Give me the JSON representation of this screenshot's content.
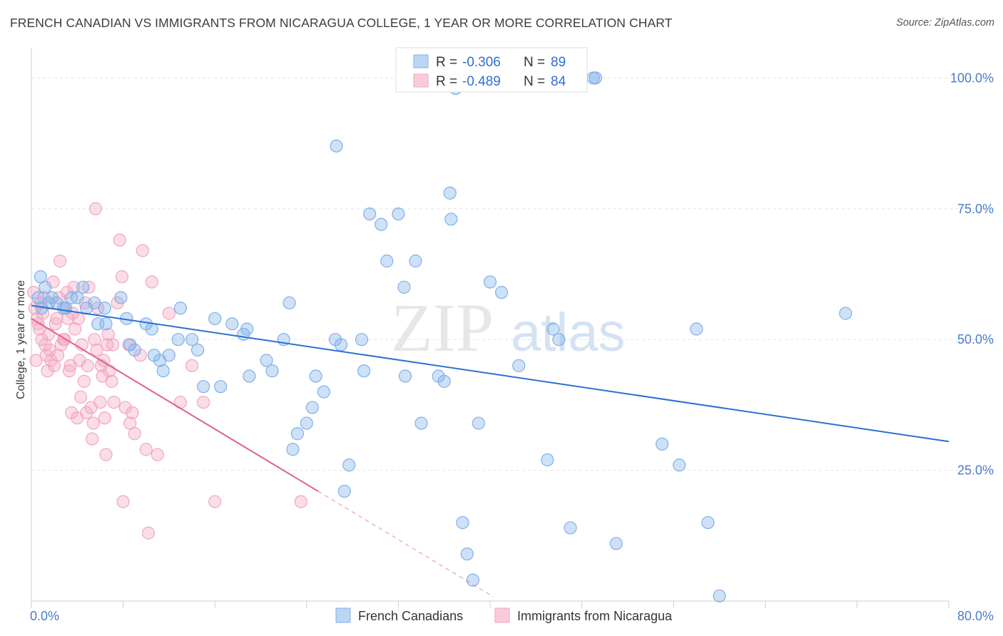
{
  "title": "FRENCH CANADIAN VS IMMIGRANTS FROM NICARAGUA COLLEGE, 1 YEAR OR MORE CORRELATION CHART",
  "source": "Source: ZipAtlas.com",
  "watermark": {
    "zip": "ZIP",
    "atlas": "atlas"
  },
  "chart_data": {
    "type": "scatter",
    "title": "FRENCH CANADIAN VS IMMIGRANTS FROM NICARAGUA COLLEGE, 1 YEAR OR MORE CORRELATION CHART",
    "ylabel": "College, 1 year or more",
    "xlabel": "",
    "xlim": [
      0,
      80
    ],
    "ylim": [
      0,
      104
    ],
    "x_tick_labels": {
      "min": "0.0%",
      "max": "80.0%"
    },
    "y_ticks": [
      {
        "value": 25,
        "label": "25.0%"
      },
      {
        "value": 50,
        "label": "50.0%"
      },
      {
        "value": 75,
        "label": "75.0%"
      },
      {
        "value": 100,
        "label": "100.0%"
      }
    ],
    "grid": true,
    "legend_placement": "top-center",
    "series": [
      {
        "name": "French Canadians",
        "color": "#7fb0ea",
        "line_color": "#2b6fd4",
        "stats": {
          "r_label": "R =",
          "r": "-0.306",
          "n_label": "N =",
          "n": "89"
        },
        "trend": {
          "x0": 0,
          "y0": 56.5,
          "x1": 80,
          "y1": 30.5
        },
        "points": [
          [
            0.8,
            62
          ],
          [
            1.2,
            60
          ],
          [
            0.6,
            58
          ],
          [
            1.8,
            58
          ],
          [
            2.2,
            57
          ],
          [
            2.8,
            56
          ],
          [
            3.5,
            58
          ],
          [
            4.5,
            60
          ],
          [
            4.8,
            56
          ],
          [
            5.5,
            57
          ],
          [
            6.4,
            56
          ],
          [
            7.8,
            58
          ],
          [
            1.5,
            57
          ],
          [
            0.9,
            56
          ],
          [
            3.0,
            56
          ],
          [
            4.0,
            58
          ],
          [
            5.8,
            53
          ],
          [
            6.5,
            53
          ],
          [
            8.3,
            54
          ],
          [
            8.6,
            49
          ],
          [
            9.0,
            48
          ],
          [
            10.0,
            53
          ],
          [
            10.5,
            52
          ],
          [
            10.7,
            47
          ],
          [
            12.0,
            47
          ],
          [
            11.2,
            46
          ],
          [
            11.5,
            44
          ],
          [
            13.0,
            56
          ],
          [
            12.8,
            50
          ],
          [
            14.0,
            50
          ],
          [
            14.5,
            48
          ],
          [
            15.0,
            41
          ],
          [
            16.0,
            54
          ],
          [
            16.5,
            41
          ],
          [
            17.5,
            53
          ],
          [
            18.8,
            52
          ],
          [
            19.0,
            43
          ],
          [
            18.5,
            51
          ],
          [
            20.5,
            46
          ],
          [
            21.0,
            44
          ],
          [
            22.0,
            50
          ],
          [
            22.5,
            57
          ],
          [
            23.2,
            32
          ],
          [
            22.8,
            29
          ],
          [
            24.0,
            34
          ],
          [
            24.5,
            37
          ],
          [
            24.8,
            43
          ],
          [
            25.5,
            40
          ],
          [
            26.5,
            50
          ],
          [
            27.0,
            49
          ],
          [
            27.7,
            26
          ],
          [
            27.3,
            21
          ],
          [
            28.8,
            50
          ],
          [
            29.0,
            44
          ],
          [
            29.5,
            74
          ],
          [
            30.5,
            72
          ],
          [
            31.0,
            65
          ],
          [
            32.0,
            74
          ],
          [
            32.5,
            60
          ],
          [
            32.6,
            43
          ],
          [
            33.5,
            65
          ],
          [
            34.0,
            34
          ],
          [
            35.5,
            43
          ],
          [
            36.0,
            42
          ],
          [
            36.5,
            78
          ],
          [
            36.6,
            73
          ],
          [
            37.0,
            98
          ],
          [
            37.6,
            15
          ],
          [
            38.0,
            9
          ],
          [
            38.5,
            4
          ],
          [
            39.0,
            34
          ],
          [
            40.0,
            61
          ],
          [
            41.0,
            59
          ],
          [
            42.5,
            45
          ],
          [
            45.0,
            27
          ],
          [
            45.5,
            52
          ],
          [
            46.0,
            50
          ],
          [
            47.0,
            14
          ],
          [
            49.0,
            100
          ],
          [
            49.2,
            100
          ],
          [
            51.0,
            11
          ],
          [
            55.0,
            30
          ],
          [
            56.5,
            26
          ],
          [
            58.0,
            52
          ],
          [
            59.0,
            15
          ],
          [
            60.0,
            1
          ],
          [
            71.0,
            55
          ],
          [
            26.6,
            87
          ]
        ]
      },
      {
        "name": "Immigrants from Nicaragua",
        "color": "#f2a6bf",
        "line_color": "#e0608e",
        "stats": {
          "r_label": "R =",
          "r": "-0.489",
          "n_label": "N =",
          "n": "84"
        },
        "trend": {
          "x0": 0,
          "y0": 54.0,
          "x1": 25.0,
          "y1": 21.0,
          "dashed_to": {
            "x": 40.3,
            "y": 0.8
          }
        },
        "points": [
          [
            0.2,
            59
          ],
          [
            0.3,
            56
          ],
          [
            0.5,
            54
          ],
          [
            0.6,
            53
          ],
          [
            0.8,
            57
          ],
          [
            1.0,
            55
          ],
          [
            1.2,
            49
          ],
          [
            1.3,
            47
          ],
          [
            1.5,
            51
          ],
          [
            1.7,
            46
          ],
          [
            1.9,
            61
          ],
          [
            2.0,
            45
          ],
          [
            2.2,
            54
          ],
          [
            2.4,
            58
          ],
          [
            2.5,
            65
          ],
          [
            2.6,
            49
          ],
          [
            2.8,
            50
          ],
          [
            3.0,
            56
          ],
          [
            3.1,
            59
          ],
          [
            3.2,
            54
          ],
          [
            3.4,
            45
          ],
          [
            3.5,
            36
          ],
          [
            3.6,
            55
          ],
          [
            3.8,
            52
          ],
          [
            4.0,
            35
          ],
          [
            4.2,
            46
          ],
          [
            4.4,
            49
          ],
          [
            4.6,
            42
          ],
          [
            4.8,
            36
          ],
          [
            4.9,
            45
          ],
          [
            5.0,
            60
          ],
          [
            5.2,
            37
          ],
          [
            5.3,
            31
          ],
          [
            5.5,
            50
          ],
          [
            5.6,
            75
          ],
          [
            5.8,
            56
          ],
          [
            6.0,
            38
          ],
          [
            6.1,
            45
          ],
          [
            6.2,
            43
          ],
          [
            6.4,
            35
          ],
          [
            6.5,
            28
          ],
          [
            6.6,
            49
          ],
          [
            6.8,
            44
          ],
          [
            7.0,
            42
          ],
          [
            7.2,
            38
          ],
          [
            7.5,
            57
          ],
          [
            7.7,
            69
          ],
          [
            7.9,
            62
          ],
          [
            8.0,
            19
          ],
          [
            8.2,
            37
          ],
          [
            8.5,
            49
          ],
          [
            8.6,
            34
          ],
          [
            8.8,
            36
          ],
          [
            9.0,
            32
          ],
          [
            9.5,
            47
          ],
          [
            9.7,
            67
          ],
          [
            10.0,
            29
          ],
          [
            10.2,
            13
          ],
          [
            10.5,
            61
          ],
          [
            11.0,
            28
          ],
          [
            12.0,
            55
          ],
          [
            13.0,
            38
          ],
          [
            14.0,
            45
          ],
          [
            15.0,
            38
          ],
          [
            16.0,
            19
          ],
          [
            0.4,
            46
          ],
          [
            1.6,
            48
          ],
          [
            2.9,
            50
          ],
          [
            4.3,
            39
          ],
          [
            5.4,
            34
          ],
          [
            3.3,
            44
          ],
          [
            6.7,
            51
          ],
          [
            2.1,
            53
          ],
          [
            0.7,
            52
          ],
          [
            1.1,
            58
          ],
          [
            5.7,
            48
          ],
          [
            3.7,
            60
          ],
          [
            4.7,
            57
          ],
          [
            2.3,
            47
          ],
          [
            6.3,
            46
          ],
          [
            0.9,
            50
          ],
          [
            7.1,
            49
          ],
          [
            1.4,
            44
          ],
          [
            4.1,
            54
          ],
          [
            23.5,
            19
          ]
        ]
      }
    ]
  }
}
